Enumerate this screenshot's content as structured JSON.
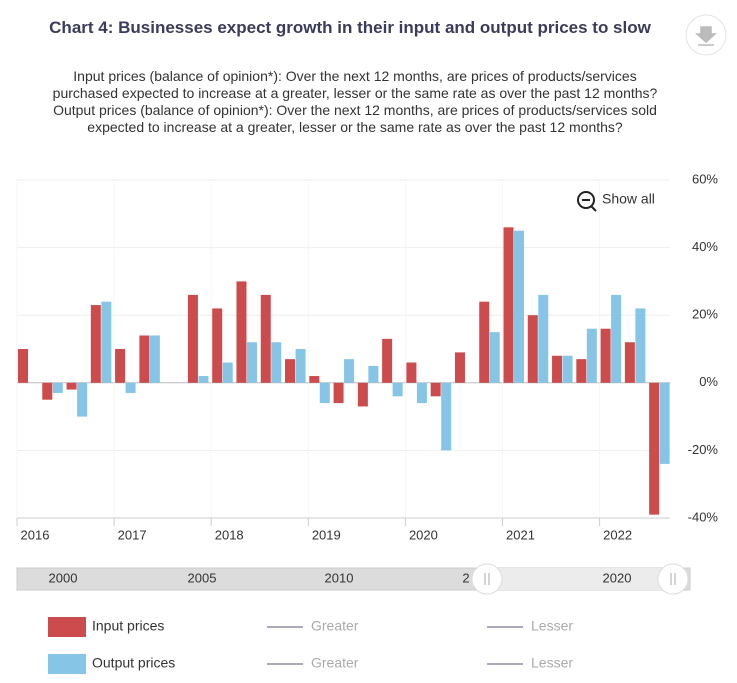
{
  "chart_data": {
    "type": "bar",
    "title": "Chart 4: Businesses expect growth in their input and output prices to slow",
    "subtitle": "Input prices (balance of opinion*): Over the next 12 months, are prices of products/services purchased expected to increase at a greater, lesser or the same rate as over the past 12 months? Output prices (balance of opinion*): Over the next 12 months, are prices of products/services sold expected to increase at a greater, lesser or the same rate as over the past 12 months?",
    "categories": [
      "2016",
      null,
      null,
      null,
      "2017",
      null,
      null,
      null,
      "2018",
      null,
      null,
      null,
      "2019",
      null,
      null,
      null,
      "2020",
      null,
      null,
      null,
      "2021",
      null,
      null,
      null,
      "2022",
      null,
      null
    ],
    "series": [
      {
        "name": "Input prices",
        "color": "#cc4b4c",
        "values": [
          10,
          -5,
          -2,
          23,
          10,
          14,
          null,
          26,
          22,
          30,
          26,
          7,
          2,
          -6,
          -7,
          13,
          6,
          -4,
          9,
          24,
          46,
          20,
          8,
          7,
          16,
          12,
          -39
        ]
      },
      {
        "name": "Output prices",
        "color": "#86c5e6",
        "values": [
          null,
          -3,
          -10,
          24,
          -3,
          14,
          null,
          2,
          6,
          12,
          12,
          10,
          -6,
          7,
          5,
          -4,
          -6,
          -20,
          null,
          15,
          45,
          26,
          8,
          16,
          26,
          22,
          -24
        ]
      }
    ],
    "ylim": [
      -40,
      60
    ],
    "yticks": [
      {
        "value": -40,
        "label": "-40%"
      },
      {
        "value": -20,
        "label": "-20%"
      },
      {
        "value": 0,
        "label": "0%"
      },
      {
        "value": 20,
        "label": "20%"
      },
      {
        "value": 40,
        "label": "40%"
      },
      {
        "value": 60,
        "label": "60%"
      }
    ],
    "grid": true,
    "show_all": "Show all",
    "navigator_labels": [
      "2000",
      "2005",
      "2010",
      "2",
      "2020"
    ],
    "legend_items": [
      [
        "Greater",
        "Lesser"
      ],
      [
        "Greater",
        "Lesser"
      ]
    ]
  }
}
